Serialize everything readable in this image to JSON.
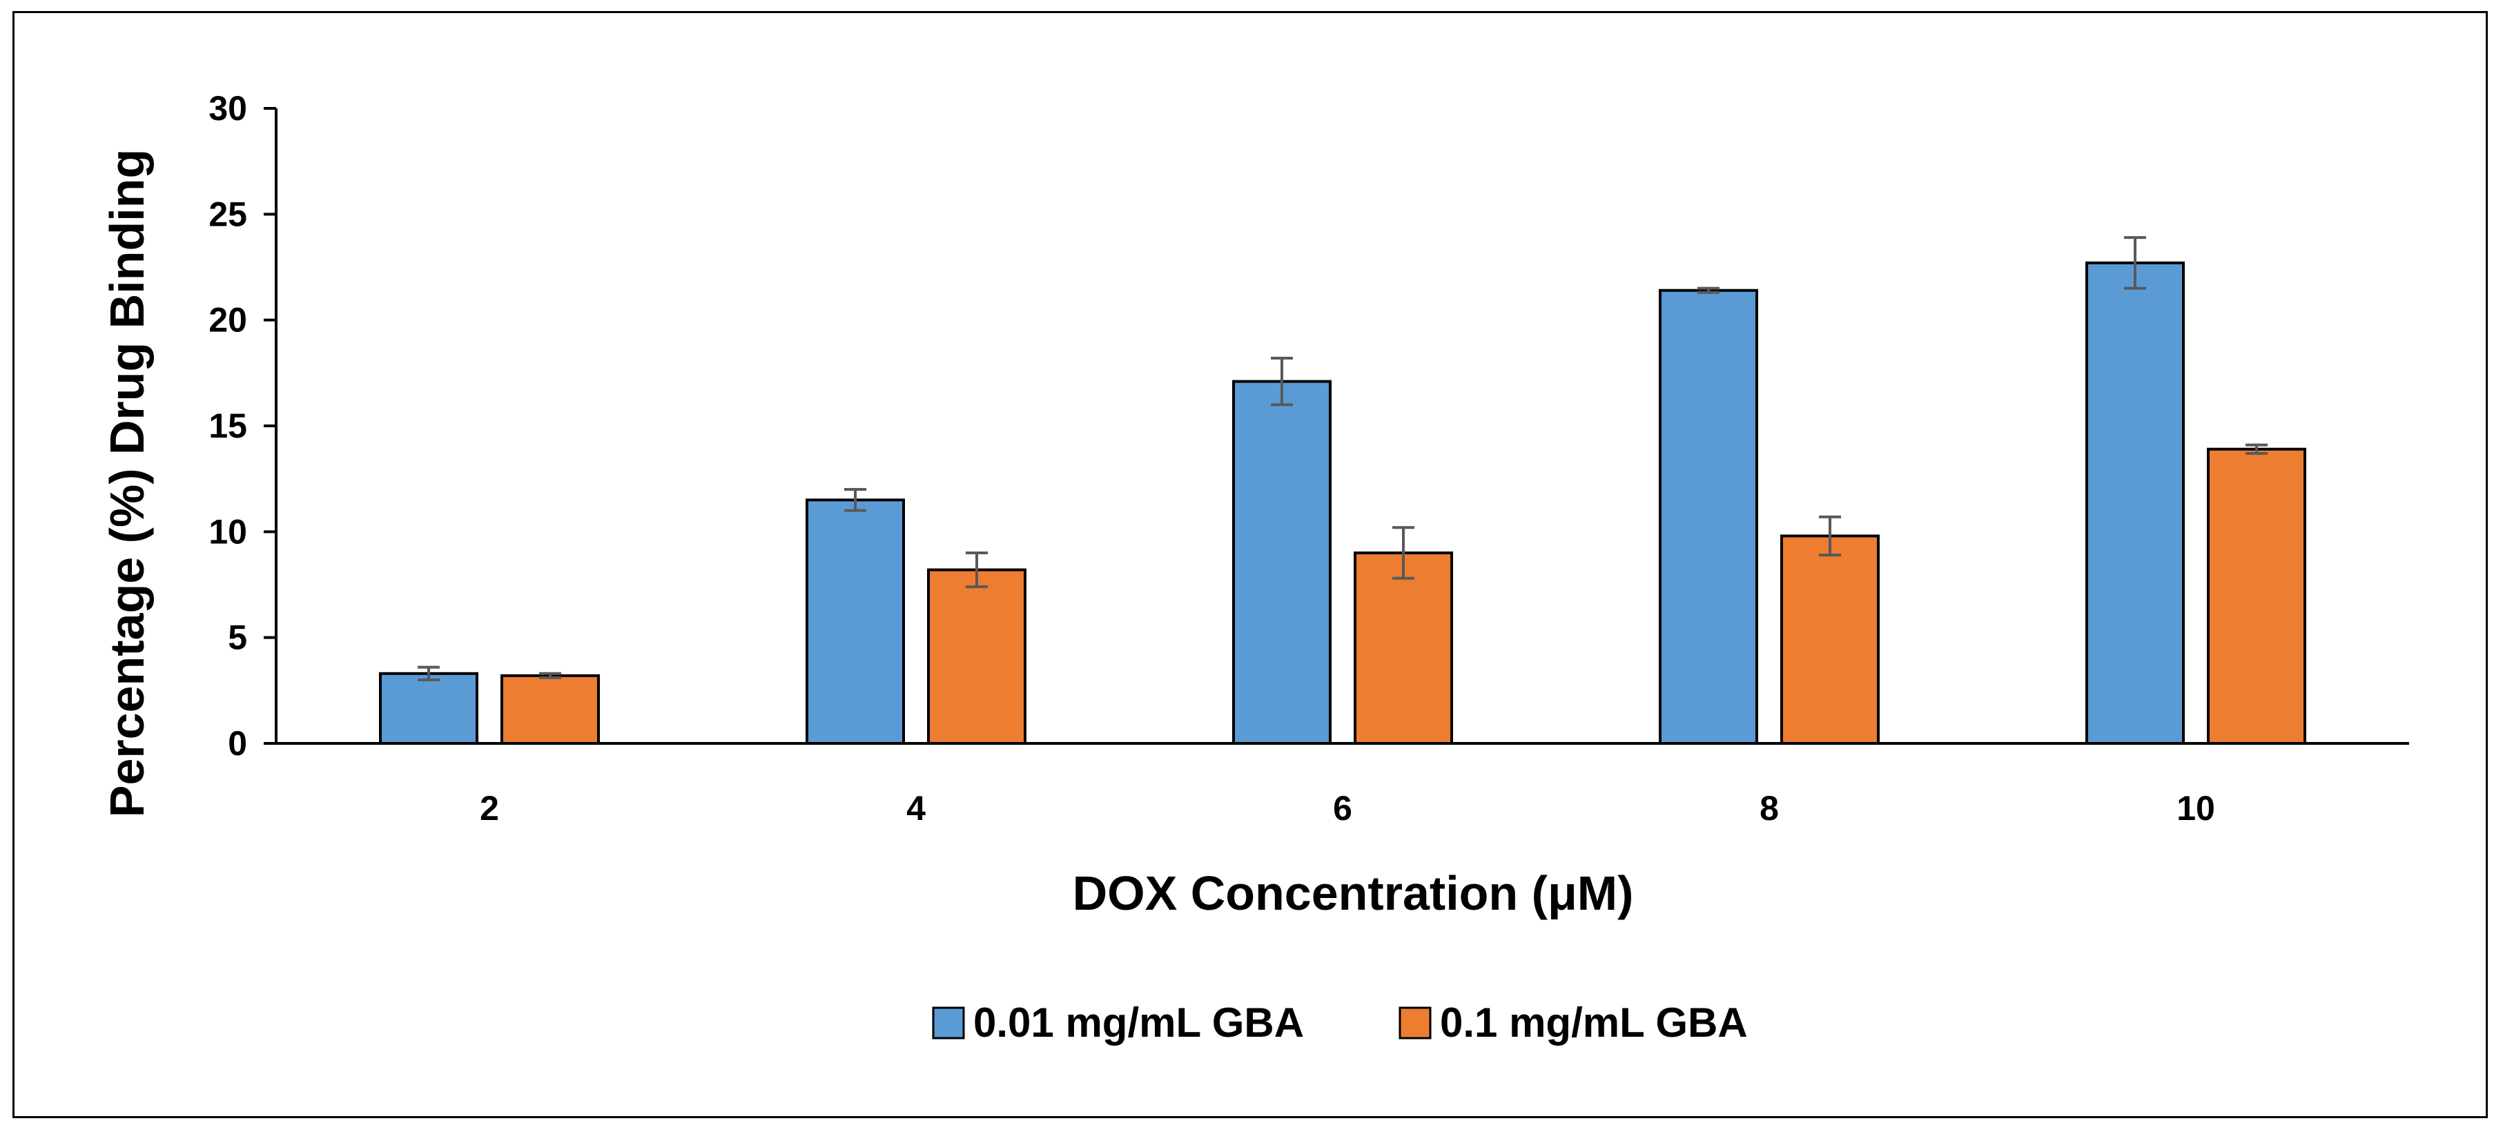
{
  "chart_data": {
    "type": "bar",
    "categories": [
      "2",
      "4",
      "6",
      "8",
      "10"
    ],
    "series": [
      {
        "name": "0.01 mg/mL GBA",
        "values": [
          3.3,
          11.5,
          17.1,
          21.4,
          22.7
        ],
        "errors": [
          0.3,
          0.5,
          1.1,
          0.1,
          1.2
        ],
        "color": "#5B9BD5"
      },
      {
        "name": "0.1 mg/mL GBA",
        "values": [
          3.2,
          8.2,
          9.0,
          9.8,
          13.9
        ],
        "errors": [
          0.1,
          0.8,
          1.2,
          0.9,
          0.2
        ],
        "color": "#ED7D31"
      }
    ],
    "xlabel": "DOX Concentration (μM)",
    "ylabel": "Percentage (%) Drug Binding",
    "ylim": [
      0,
      30
    ],
    "yticks": [
      "0",
      "5",
      "10",
      "15",
      "20",
      "25",
      "30"
    ],
    "grid": false,
    "legend_position": "bottom",
    "error_bar_color": "#595959"
  }
}
